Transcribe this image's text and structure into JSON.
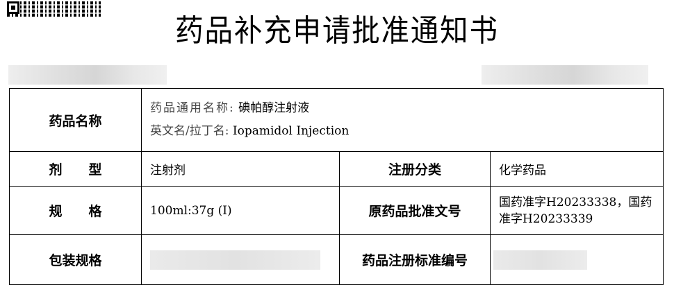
{
  "title": "药品补充申请批准通知书",
  "table": {
    "drug_name_label": "药品名称",
    "generic_name_label": "药品通用名称:",
    "generic_name": "碘帕醇注射液",
    "english_name_label": "英文名/拉丁名:",
    "english_name": "Iopamidol Injection",
    "dosage_form_label": "剂　　型",
    "dosage_form": "注射剂",
    "reg_class_label": "注册分类",
    "reg_class": "化学药品",
    "spec_label": "规　　格",
    "spec": "100ml:37g (I)",
    "orig_approval_label": "原药品批准文号",
    "orig_approval": "国药准字H20233338，国药准字H20233339",
    "package_label": "包装规格",
    "reg_std_label": "药品注册标准编号"
  }
}
